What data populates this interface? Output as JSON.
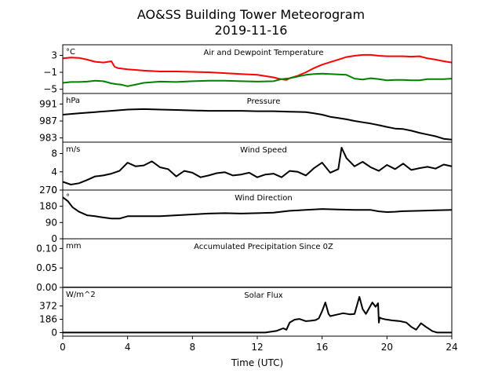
{
  "chart_data": {
    "type": "line",
    "title": "AO&SS Building Tower Meteorogram",
    "subtitle": "2019-11-16",
    "xlabel": "Time (UTC)",
    "xlim": [
      0,
      24
    ],
    "x_ticks": [
      "0",
      "4",
      "8",
      "12",
      "16",
      "20",
      "24"
    ],
    "grid": false,
    "panels": [
      {
        "id": "temperature",
        "title": "Air and Dewpoint Temperature",
        "unit": "°C",
        "ylim": [
          -6,
          5.5
        ],
        "y_ticks": [
          "3",
          "−1",
          "−5"
        ],
        "series": [
          {
            "name": "Air Temperature",
            "color": "#ff0000",
            "x": [
              0,
              0.5,
              1,
              1.5,
              2,
              2.5,
              3,
              3.2,
              3.4,
              3.6,
              4,
              5,
              6,
              7,
              8,
              9,
              10,
              11,
              12,
              12.5,
              13,
              13.3,
              13.6,
              13.8,
              14,
              14.5,
              15,
              15.5,
              16,
              16.5,
              17,
              17.5,
              18,
              18.5,
              19,
              19.5,
              20,
              20.5,
              21,
              21.5,
              22,
              22.5,
              23,
              23.5,
              24
            ],
            "y": [
              2.3,
              2.5,
              2.4,
              2.0,
              1.5,
              1.3,
              1.6,
              0.3,
              0.0,
              -0.1,
              -0.3,
              -0.6,
              -0.8,
              -0.8,
              -0.9,
              -1.0,
              -1.2,
              -1.4,
              -1.6,
              -1.9,
              -2.2,
              -2.5,
              -2.7,
              -2.8,
              -2.4,
              -1.8,
              -1.0,
              0.0,
              0.8,
              1.4,
              2.0,
              2.6,
              2.9,
              3.1,
              3.1,
              2.9,
              2.8,
              2.8,
              2.8,
              2.7,
              2.8,
              2.3,
              2.0,
              1.6,
              1.3
            ]
          },
          {
            "name": "Dewpoint",
            "color": "#008000",
            "x": [
              0,
              0.5,
              1,
              1.5,
              2,
              2.5,
              3,
              3.3,
              3.6,
              4,
              5,
              6,
              7,
              8,
              9,
              10,
              11,
              12,
              13,
              13.5,
              14,
              14.5,
              15,
              15.5,
              16,
              16.5,
              17,
              17.5,
              18,
              18.5,
              19,
              19.5,
              20,
              20.5,
              21,
              21.5,
              22,
              22.5,
              23,
              23.5,
              24
            ],
            "y": [
              -3.5,
              -3.3,
              -3.3,
              -3.2,
              -3.0,
              -3.1,
              -3.6,
              -3.8,
              -3.9,
              -4.3,
              -3.5,
              -3.2,
              -3.3,
              -3.1,
              -3.0,
              -3.0,
              -3.1,
              -3.2,
              -3.1,
              -2.6,
              -2.4,
              -2.0,
              -1.6,
              -1.4,
              -1.3,
              -1.4,
              -1.5,
              -1.6,
              -2.5,
              -2.7,
              -2.4,
              -2.6,
              -2.9,
              -2.8,
              -2.8,
              -2.9,
              -2.9,
              -2.6,
              -2.6,
              -2.6,
              -2.5
            ]
          }
        ]
      },
      {
        "id": "pressure",
        "title": "Pressure",
        "unit": "hPa",
        "ylim": [
          982,
          993.5
        ],
        "y_ticks": [
          "991",
          "987",
          "983"
        ],
        "series": [
          {
            "name": "Pressure",
            "color": "#000000",
            "x": [
              0,
              1,
              2,
              3,
              4,
              5,
              6,
              7,
              8,
              9,
              10,
              11,
              12,
              13,
              14,
              15,
              15.5,
              16,
              16.5,
              17,
              17.5,
              18,
              18.5,
              19,
              19.5,
              20,
              20.5,
              21,
              21.5,
              22,
              22.5,
              23,
              23.5,
              24
            ],
            "y": [
              988.5,
              988.8,
              989.1,
              989.4,
              989.7,
              989.8,
              989.7,
              989.6,
              989.5,
              989.4,
              989.4,
              989.4,
              989.3,
              989.3,
              989.2,
              989.1,
              988.8,
              988.5,
              988.0,
              987.7,
              987.4,
              987.0,
              986.7,
              986.4,
              986.0,
              985.6,
              985.2,
              985.1,
              984.7,
              984.2,
              983.8,
              983.4,
              982.8,
              982.6
            ]
          }
        ]
      },
      {
        "id": "wind_speed",
        "title": "Wind Speed",
        "unit": "m/s",
        "ylim": [
          0,
          10.5
        ],
        "y_ticks": [
          "8",
          "4",
          "0"
        ],
        "series": [
          {
            "name": "Wind Speed",
            "color": "#000000",
            "x": [
              0,
              0.5,
              1,
              1.5,
              2,
              2.5,
              3,
              3.5,
              4,
              4.5,
              5,
              5.5,
              6,
              6.5,
              7,
              7.5,
              8,
              8.5,
              9,
              9.5,
              10,
              10.5,
              11,
              11.5,
              12,
              12.5,
              13,
              13.5,
              14,
              14.5,
              15,
              15.5,
              16,
              16.5,
              17,
              17.2,
              17.5,
              18,
              18.5,
              19,
              19.5,
              20,
              20.5,
              21,
              21.5,
              22,
              22.5,
              23,
              23.5,
              24
            ],
            "y": [
              1.8,
              1.2,
              1.5,
              2.2,
              3.0,
              3.2,
              3.6,
              4.2,
              6.0,
              5.2,
              5.4,
              6.3,
              5.0,
              4.6,
              3.0,
              4.2,
              3.8,
              2.8,
              3.2,
              3.7,
              3.9,
              3.2,
              3.4,
              3.8,
              2.8,
              3.4,
              3.6,
              2.8,
              4.2,
              4.0,
              3.2,
              4.8,
              6.0,
              3.8,
              4.6,
              9.3,
              7.0,
              5.2,
              6.2,
              5.0,
              4.2,
              5.5,
              4.6,
              5.8,
              4.4,
              4.8,
              5.1,
              4.7,
              5.6,
              5.2
            ]
          }
        ]
      },
      {
        "id": "wind_direction",
        "title": "Wind Direction",
        "unit": "°",
        "ylim": [
          0,
          270
        ],
        "y_ticks": [
          "270",
          "180",
          "90",
          "0"
        ],
        "series": [
          {
            "name": "Wind Direction",
            "color": "#000000",
            "x": [
              0,
              0.3,
              0.6,
              1,
              1.5,
              2,
              2.5,
              3,
              3.5,
              4,
              5,
              6,
              7,
              8,
              9,
              10,
              11,
              12,
              13,
              14,
              15,
              16,
              17,
              18,
              19,
              19.5,
              20,
              20.5,
              21,
              22,
              23,
              24
            ],
            "y": [
              230,
              210,
              175,
              150,
              130,
              125,
              118,
              112,
              112,
              125,
              125,
              125,
              130,
              135,
              140,
              142,
              140,
              142,
              145,
              155,
              160,
              165,
              162,
              160,
              160,
              152,
              148,
              150,
              153,
              155,
              158,
              160
            ]
          }
        ]
      },
      {
        "id": "precipitation",
        "title": "Accumulated Precipitation Since 0Z",
        "unit": "mm",
        "ylim": [
          0,
          0.125
        ],
        "y_ticks": [
          "0.10",
          "0.05",
          "0.00"
        ],
        "series": [
          {
            "name": "Precipitation",
            "color": "#000000",
            "x": [
              0,
              24
            ],
            "y": [
              0,
              0
            ]
          }
        ]
      },
      {
        "id": "solar_flux",
        "title": "Solar Flux",
        "unit": "W/m^2",
        "ylim": [
          -50,
          630
        ],
        "y_ticks": [
          "372",
          "186",
          "0"
        ],
        "series": [
          {
            "name": "Solar Flux",
            "color": "#000000",
            "x": [
              0,
              12.5,
              13.2,
              13.6,
              13.8,
              14,
              14.3,
              14.6,
              15,
              15.3,
              15.6,
              15.8,
              16,
              16.2,
              16.4,
              16.5,
              17,
              17.3,
              17.7,
              18,
              18.3,
              18.5,
              18.7,
              18.9,
              19.1,
              19.3,
              19.45,
              19.5,
              19.55,
              19.7,
              19.9,
              20.3,
              20.8,
              21.2,
              21.5,
              21.8,
              22.1,
              22.4,
              22.8,
              23.1,
              24
            ],
            "y": [
              0,
              0,
              25,
              60,
              40,
              140,
              180,
              190,
              160,
              165,
              175,
              200,
              300,
              420,
              260,
              230,
              255,
              270,
              255,
              260,
              500,
              330,
              260,
              340,
              420,
              360,
              410,
              140,
              210,
              195,
              185,
              170,
              160,
              140,
              80,
              40,
              130,
              80,
              20,
              0,
              0
            ]
          }
        ]
      }
    ]
  }
}
